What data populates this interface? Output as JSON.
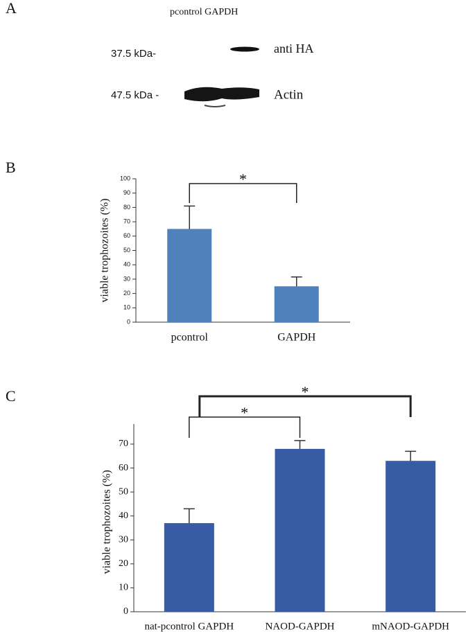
{
  "panels": [
    "A",
    "B",
    "C"
  ],
  "blot": {
    "lanes": "pcontrol  GAPDH",
    "markers": [
      "37.5 kDa-",
      "47.5 kDa -"
    ],
    "bands": [
      "anti HA",
      "Actin"
    ]
  },
  "chart_data": [
    {
      "type": "bar",
      "ylabel": "viable trophozoites (%)",
      "categories": [
        "pcontrol",
        "GAPDH"
      ],
      "values": [
        65,
        25
      ],
      "errors": [
        16,
        6.5
      ],
      "color": "#4f81bd",
      "ylim": [
        0,
        100
      ],
      "yticks": [
        0,
        10,
        20,
        30,
        40,
        50,
        60,
        70,
        80,
        90,
        100
      ],
      "annotations": [
        {
          "text": "*",
          "between": [
            "pcontrol",
            "GAPDH"
          ]
        }
      ]
    },
    {
      "type": "bar",
      "ylabel": "viable trophozoites (%)",
      "categories": [
        "nat-pcontrol GAPDH",
        "NAOD-GAPDH",
        "mNAOD-GAPDH"
      ],
      "values": [
        37,
        68,
        63
      ],
      "errors": [
        6,
        3.5,
        4
      ],
      "color": "#375ba5",
      "ylim": [
        0,
        75
      ],
      "yticks": [
        0,
        10,
        20,
        30,
        40,
        50,
        60,
        70
      ],
      "annotations": [
        {
          "text": "*",
          "between": [
            "nat-pcontrol GAPDH",
            "NAOD-GAPDH"
          ]
        },
        {
          "text": "*",
          "between": [
            "nat-pcontrol GAPDH",
            "mNAOD-GAPDH"
          ]
        }
      ]
    }
  ]
}
